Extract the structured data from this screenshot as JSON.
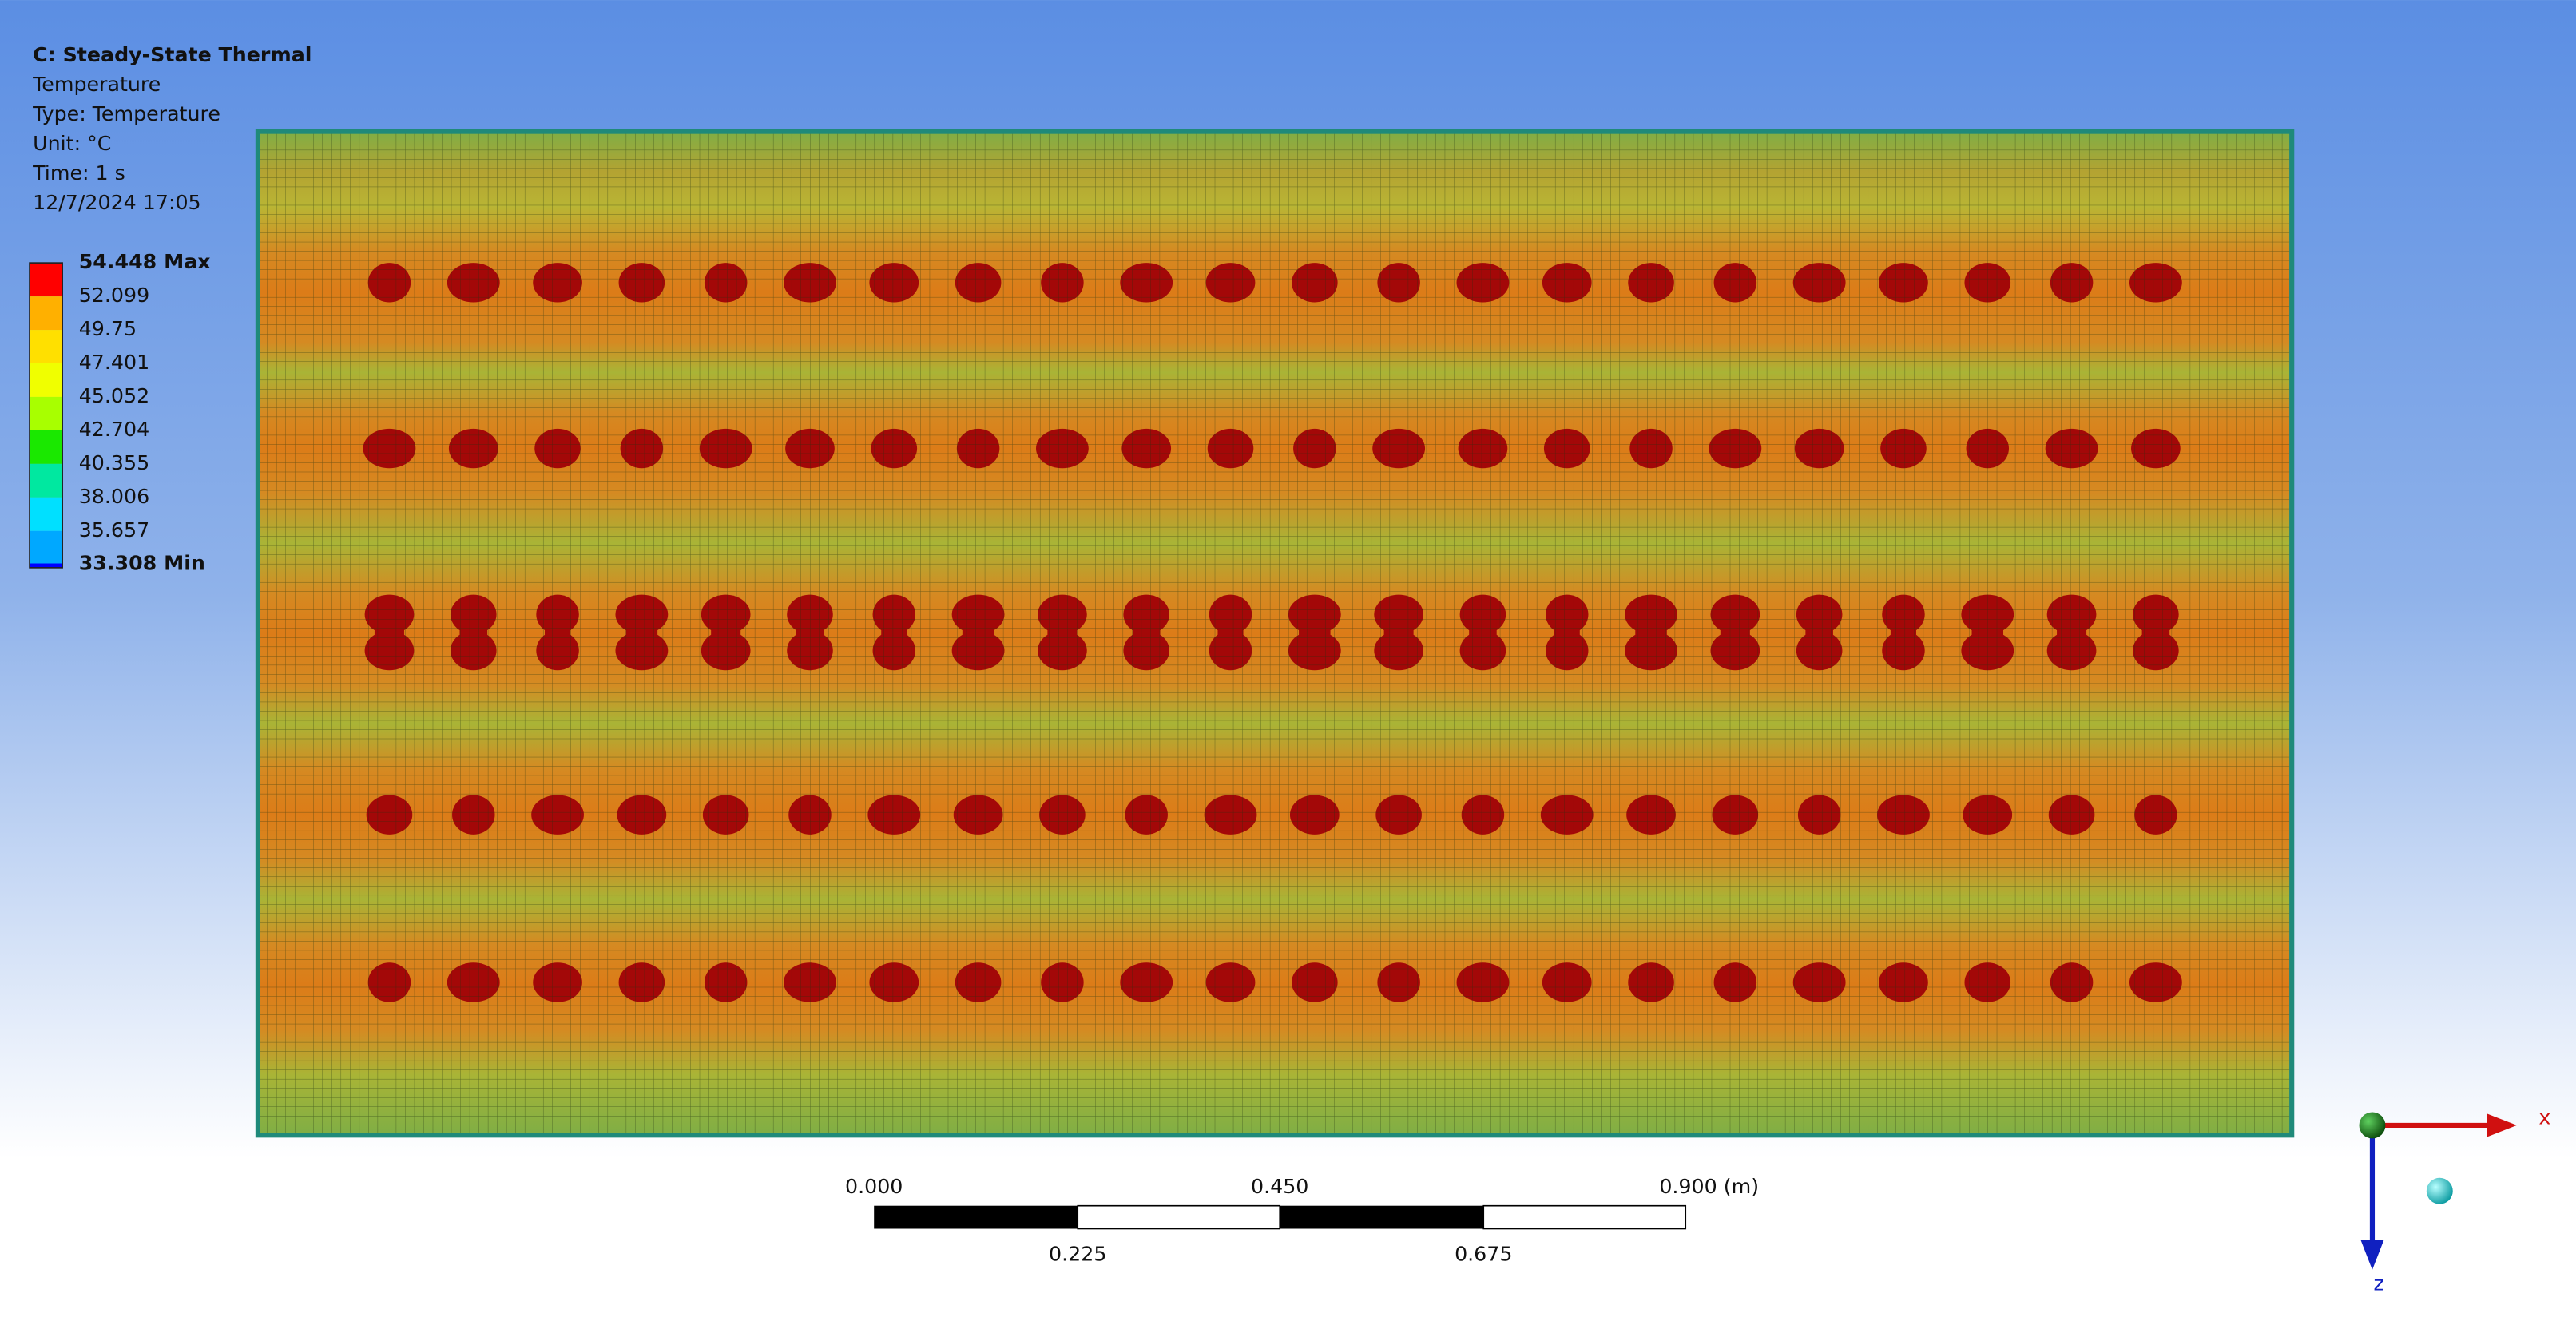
{
  "header": {
    "title": "C: Steady-State Thermal",
    "lines": [
      "Temperature",
      "Type: Temperature",
      "Unit: °C",
      "Time: 1 s",
      "12/7/2024 17:05"
    ]
  },
  "legend": {
    "labels": [
      "54.448 Max",
      "52.099",
      "49.75",
      "47.401",
      "45.052",
      "42.704",
      "40.355",
      "38.006",
      "35.657",
      "33.308 Min"
    ]
  },
  "scale_bar": {
    "top_labels": [
      "0.000",
      "0.450",
      "0.900 (m)"
    ],
    "bottom_labels": [
      "0.225",
      "0.675"
    ]
  },
  "triad": {
    "x": "x",
    "z": "z"
  }
}
